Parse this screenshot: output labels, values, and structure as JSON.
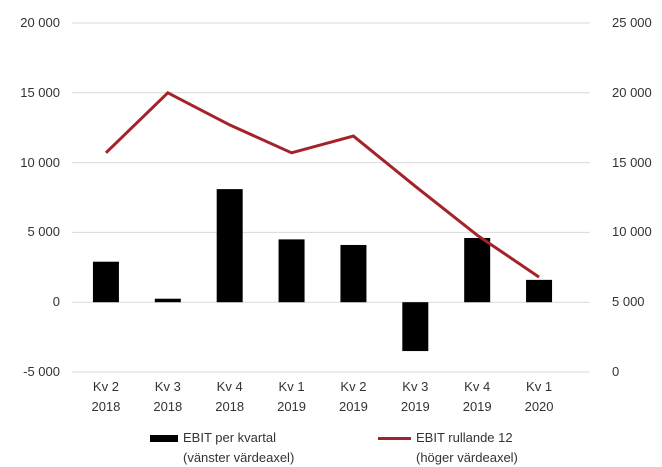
{
  "chart_data": {
    "type": "bar-line",
    "categories": [
      "Kv 2\n2018",
      "Kv 3\n2018",
      "Kv 4\n2018",
      "Kv 1\n2019",
      "Kv 2\n2019",
      "Kv 3\n2019",
      "Kv 4\n2019",
      "Kv 1\n2020"
    ],
    "series": [
      {
        "name": "EBIT per kvartal\n(vänster värdeaxel)",
        "type": "bar",
        "color": "#000000",
        "values": [
          2900,
          250,
          8100,
          4500,
          4100,
          -3500,
          4600,
          1600
        ]
      },
      {
        "name": "EBIT rullande 12\n(höger värdeaxel)",
        "type": "line",
        "axis": "y2",
        "color": "#a4232b",
        "values": [
          15700,
          20000,
          17700,
          15700,
          16900,
          13300,
          9800,
          6800
        ]
      }
    ],
    "ylim": [
      -5000,
      20000
    ],
    "yticks": [
      {
        "value": -5000,
        "label": "-5 000"
      },
      0,
      {
        "value": 5000,
        "label": "5 000"
      },
      {
        "value": 10000,
        "label": "10 000"
      },
      {
        "value": 15000,
        "label": "15 000"
      },
      {
        "value": 20000,
        "label": "20 000"
      }
    ],
    "y2lim": [
      0,
      25000
    ],
    "y2ticks": [
      0,
      {
        "value": 5000,
        "label": "5 000"
      },
      {
        "value": 10000,
        "label": "10 000"
      },
      {
        "value": 15000,
        "label": "15 000"
      },
      {
        "value": 20000,
        "label": "20 000"
      },
      {
        "value": 25000,
        "label": "25 000"
      }
    ],
    "grid": true,
    "legend": "bottom"
  }
}
